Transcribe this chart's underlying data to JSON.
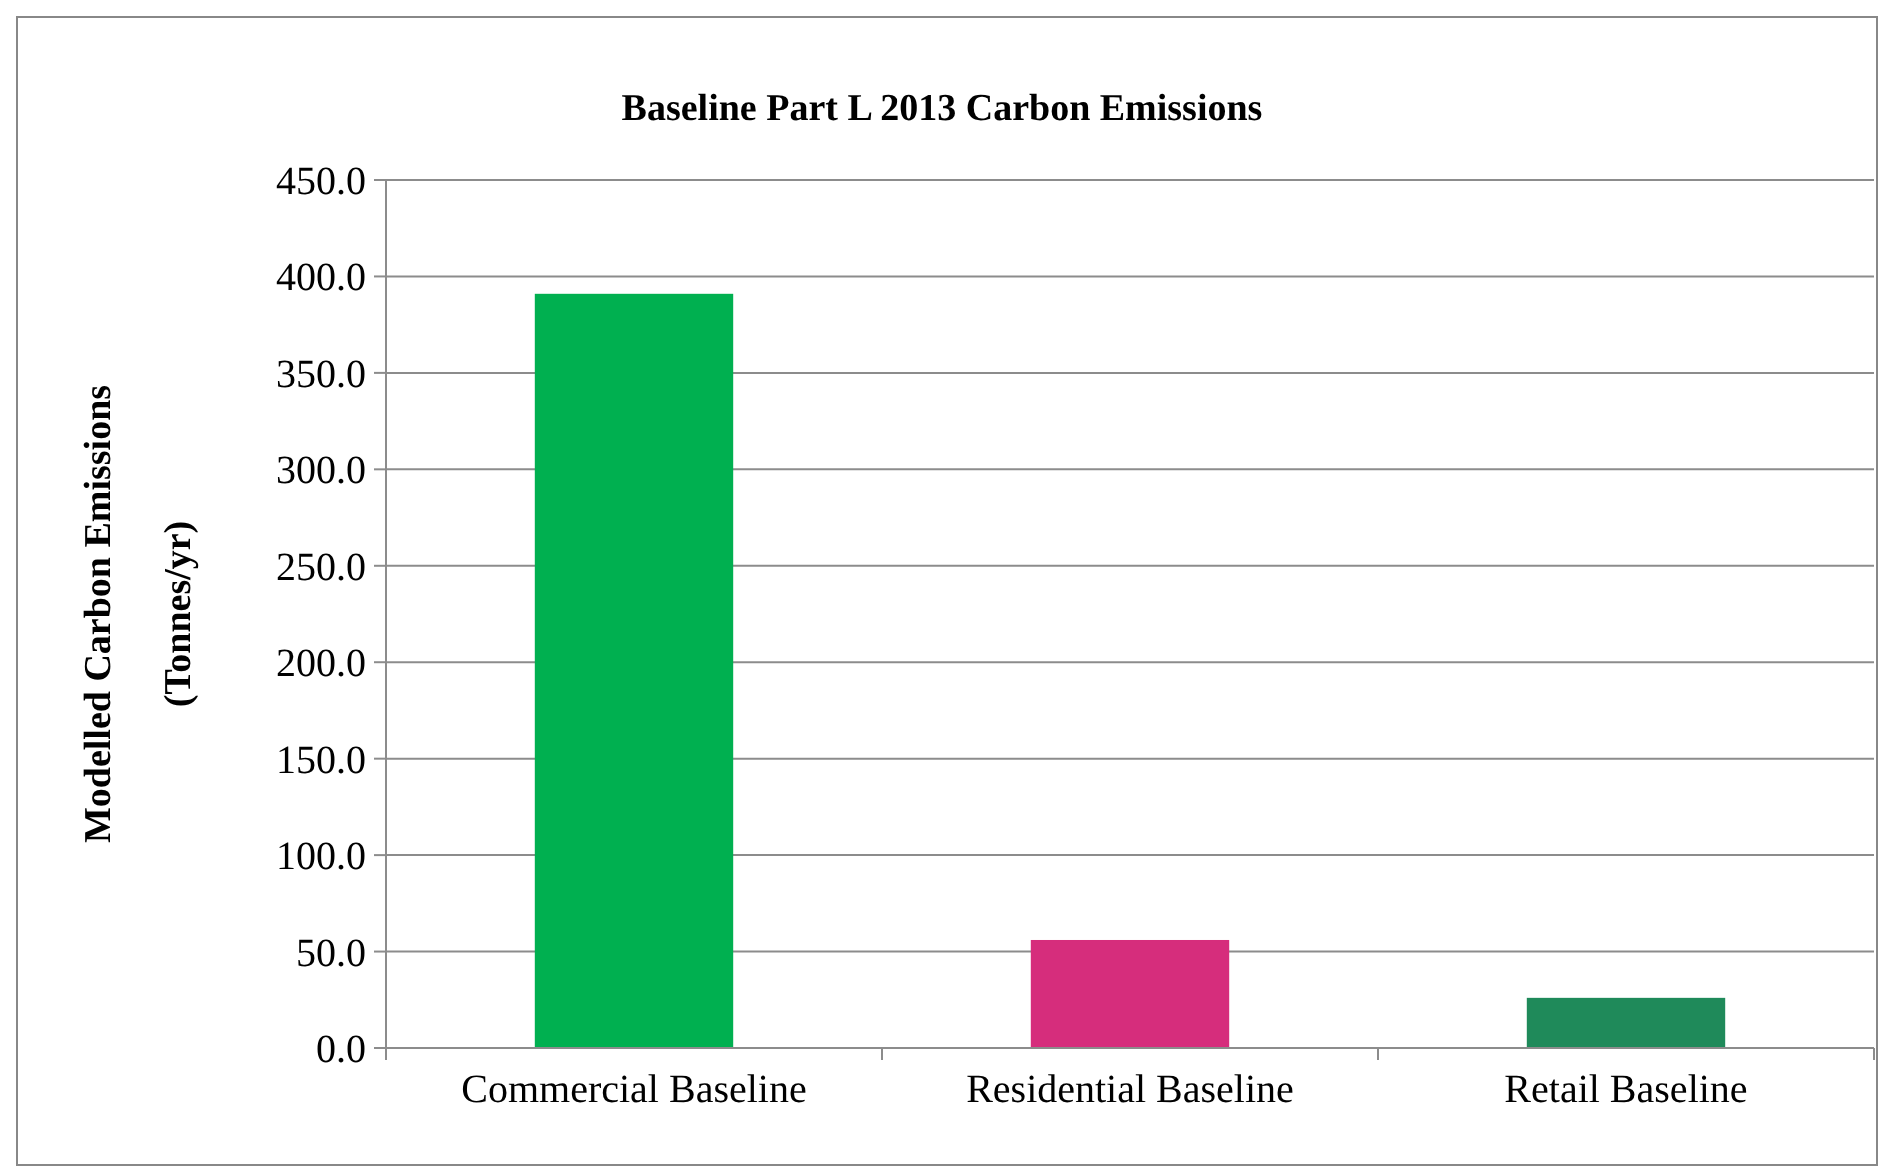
{
  "chart_data": {
    "type": "bar",
    "title": "Baseline Part L 2013 Carbon Emissions",
    "ylabel": "Modelled Carbon Emissions\n(Tonnes/yr)",
    "categories": [
      "Commercial Baseline",
      "Residential Baseline",
      "Retail Baseline"
    ],
    "values": [
      391,
      56,
      26
    ],
    "colors": [
      "#00b050",
      "#d62d7c",
      "#1f8a5a"
    ],
    "ylim": [
      0,
      450
    ],
    "yticks": [
      {
        "value": 0,
        "label": "0.0"
      },
      {
        "value": 50,
        "label": "50.0"
      },
      {
        "value": 100,
        "label": "100.0"
      },
      {
        "value": 150,
        "label": "150.0"
      },
      {
        "value": 200,
        "label": "200.0"
      },
      {
        "value": 250,
        "label": "250.0"
      },
      {
        "value": 300,
        "label": "300.0"
      },
      {
        "value": 350,
        "label": "350.0"
      },
      {
        "value": 400,
        "label": "400.0"
      },
      {
        "value": 450,
        "label": "450.0"
      }
    ],
    "grid": "y"
  }
}
